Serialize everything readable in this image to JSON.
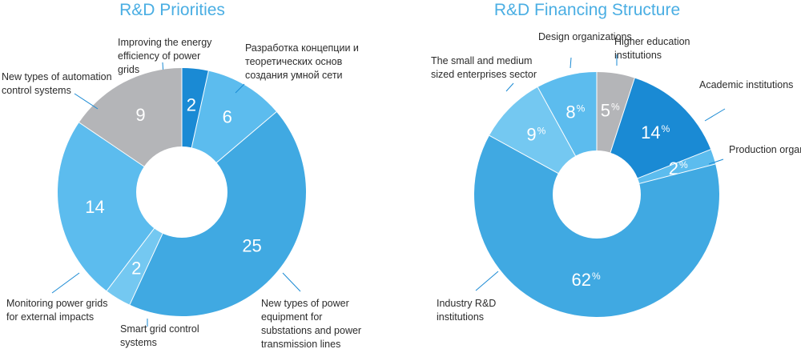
{
  "chart_data": [
    {
      "type": "pie",
      "title": "R&D Priorities",
      "unit": "",
      "slices": [
        {
          "label": "Improving the energy efficiency of power grids",
          "value": 2,
          "display": "2",
          "color": "#1a8ad4"
        },
        {
          "label": "Разработка концепции и теоретических основ создания умной сети",
          "value": 6,
          "display": "6",
          "color": "#5cbcee"
        },
        {
          "label": "New types of power equipment for substations and power transmission lines",
          "value": 25,
          "display": "25",
          "color": "#40a9e2"
        },
        {
          "label": "Smart grid control systems",
          "value": 2,
          "display": "2",
          "color": "#74c8f1"
        },
        {
          "label": "Monitoring power grids for external impacts",
          "value": 14,
          "display": "14",
          "color": "#5cbcee"
        },
        {
          "label": "New types of automation control systems",
          "value": 9,
          "display": "9",
          "color": "#b4b5b8"
        }
      ]
    },
    {
      "type": "pie",
      "title": "R&D Financing Structure",
      "unit": "%",
      "slices": [
        {
          "label": "Higher education institutions",
          "value": 5,
          "display": "5",
          "color": "#b4b5b8"
        },
        {
          "label": "Academic institutions",
          "value": 14,
          "display": "14",
          "color": "#1a8ad4"
        },
        {
          "label": "Production organizations",
          "value": 2,
          "display": "2",
          "color": "#5cbcee"
        },
        {
          "label": "Industry R&D institutions",
          "value": 62,
          "display": "62",
          "color": "#40a9e2"
        },
        {
          "label": "The small and medium sized enterprises sector",
          "value": 9,
          "display": "9",
          "color": "#74c8f1"
        },
        {
          "label": "Design organizations",
          "value": 8,
          "display": "8",
          "color": "#5cbcee"
        }
      ]
    }
  ]
}
